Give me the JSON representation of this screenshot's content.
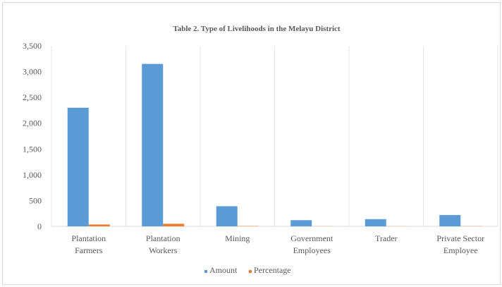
{
  "chart_data": {
    "type": "bar",
    "title": "Table 2. Type of Livelihoods in the Melayu District",
    "categories": [
      [
        "Plantation",
        "Farmers"
      ],
      [
        "Plantation",
        "Workers"
      ],
      [
        "Mining"
      ],
      [
        "Government",
        "Employees"
      ],
      [
        "Trader"
      ],
      [
        "Private Sector",
        "Employee"
      ]
    ],
    "series": [
      {
        "name": "Amount",
        "color": "#5b9bd5",
        "values": [
          2300,
          3150,
          390,
          120,
          140,
          220
        ]
      },
      {
        "name": "Percentage",
        "color": "#ed7d31",
        "values": [
          36.6,
          50.1,
          6.2,
          1.9,
          2.2,
          3.5
        ]
      }
    ],
    "yticks": [
      "0",
      "500",
      "1,000",
      "1,500",
      "2,000",
      "2,500",
      "3,000",
      "3,500"
    ],
    "ylim": [
      0,
      3500
    ],
    "grid": "vertical",
    "legend_position": "bottom"
  }
}
